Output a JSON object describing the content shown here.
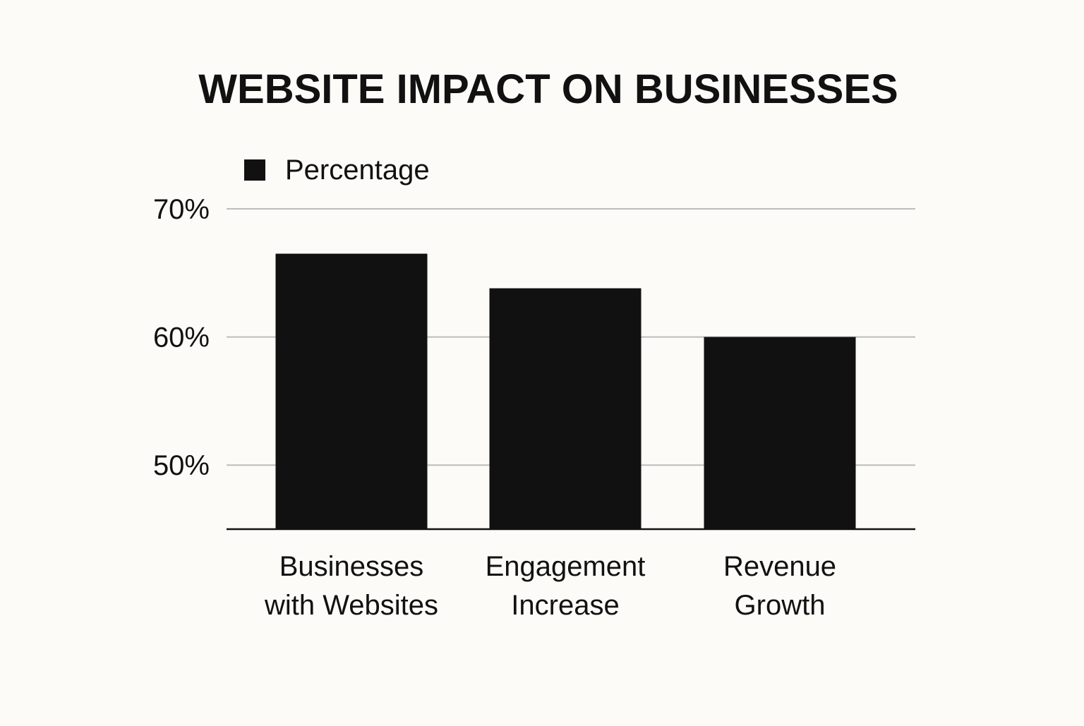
{
  "colors": {
    "background": "#fcfbf7",
    "bar": "#111111",
    "text": "#111111",
    "gridline": "#bdbdbd",
    "axis": "#111111"
  },
  "chart_data": {
    "type": "bar",
    "title": "WEBSITE IMPACT ON BUSINESSES",
    "xlabel": "",
    "ylabel": "",
    "legend": {
      "entries": [
        "Percentage"
      ],
      "position": "top-left"
    },
    "grid": true,
    "categories": [
      [
        "Businesses",
        "with Websites"
      ],
      [
        "Engagement",
        "Increase"
      ],
      [
        "Revenue",
        "Growth"
      ]
    ],
    "series": [
      {
        "name": "Percentage",
        "values": [
          66.5,
          63.8,
          60.0
        ]
      }
    ],
    "ylim": [
      45,
      70
    ],
    "yticks": [
      50,
      60,
      70
    ],
    "ytick_labels": [
      "50%",
      "60%",
      "70%"
    ]
  }
}
